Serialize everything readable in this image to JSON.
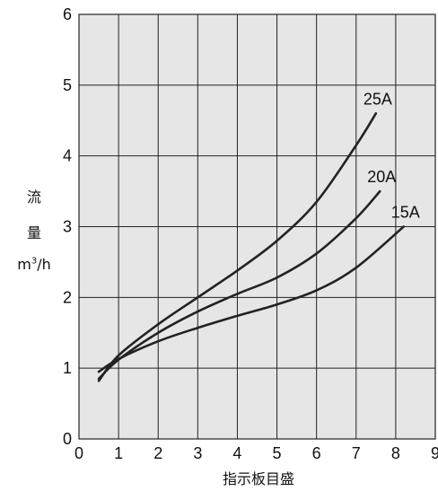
{
  "chart_data": {
    "type": "line",
    "title": "",
    "xlabel": "指示板目盛",
    "ylabel": {
      "line1": "流",
      "line2": "量",
      "unit_base": "m",
      "unit_sup": "3",
      "unit_rest": "/h"
    },
    "xlim": [
      0,
      9
    ],
    "ylim": [
      0,
      6
    ],
    "xticks": [
      "0",
      "1",
      "2",
      "3",
      "4",
      "5",
      "6",
      "7",
      "8",
      "9"
    ],
    "yticks": [
      "0",
      "1",
      "2",
      "3",
      "4",
      "5",
      "6"
    ],
    "grid": true,
    "background": "#e6e6e6",
    "line_color": "#222222",
    "series": [
      {
        "name": "25A",
        "x": [
          0.5,
          1,
          2,
          3,
          4,
          5,
          6,
          7,
          7.5
        ],
        "y": [
          0.82,
          1.18,
          1.62,
          2.0,
          2.38,
          2.8,
          3.35,
          4.15,
          4.6
        ]
      },
      {
        "name": "20A",
        "x": [
          0.5,
          1,
          2,
          3,
          4,
          5,
          6,
          7,
          7.6
        ],
        "y": [
          0.85,
          1.12,
          1.5,
          1.8,
          2.05,
          2.28,
          2.62,
          3.12,
          3.5
        ]
      },
      {
        "name": "15A",
        "x": [
          0.5,
          1,
          2,
          3,
          4,
          5,
          6,
          7,
          8.2
        ],
        "y": [
          0.95,
          1.13,
          1.38,
          1.57,
          1.74,
          1.9,
          2.1,
          2.42,
          3.0
        ]
      }
    ]
  }
}
